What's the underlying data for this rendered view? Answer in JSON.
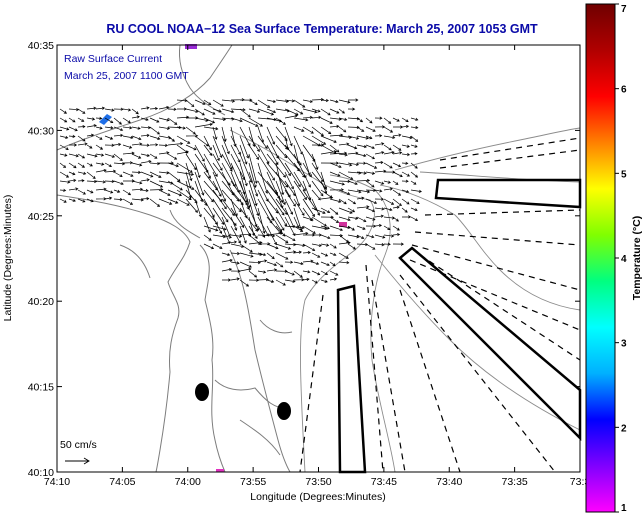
{
  "title": "RU COOL  NOAA−12  Sea Surface Temperature:  March 25, 2007 1053 GMT",
  "annotation": {
    "line1": "Raw Surface Current",
    "line2": "March 25, 2007 1100 GMT"
  },
  "scale_label": "50 cm/s",
  "axes": {
    "xlabel": "Longitude (Degrees:Minutes)",
    "ylabel": "Latitude (Degrees:Minutes)",
    "xticks": [
      "74:10",
      "74:05",
      "74:00",
      "73:55",
      "73:50",
      "73:45",
      "73:40",
      "73:35",
      "73:3"
    ],
    "yticks": [
      "40:10",
      "40:15",
      "40:20",
      "40:25",
      "40:30",
      "40:35"
    ]
  },
  "colorbar": {
    "label": "Temperature (°C)",
    "ticks": [
      "1",
      "2",
      "3",
      "4",
      "5",
      "6",
      "7"
    ],
    "colors": [
      "#ff00ff",
      "#8000ff",
      "#0000ff",
      "#00b0ff",
      "#00ffff",
      "#00ff80",
      "#80ff00",
      "#ffff00",
      "#ff8000",
      "#ff0000",
      "#b00000",
      "#700000"
    ]
  },
  "chart_data": {
    "type": "map",
    "title": "RU COOL  NOAA−12  Sea Surface Temperature:  March 25, 2007 1053 GMT",
    "xlabel": "Longitude (Degrees:Minutes)",
    "ylabel": "Latitude (Degrees:Minutes)",
    "xlim": [
      -74.1667,
      -73.5
    ],
    "ylim": [
      40.1667,
      40.5833
    ],
    "colorbar_range": [
      1,
      7
    ],
    "legend": "Raw Surface Current, March 25, 2007 1100 GMT",
    "grid": false
  }
}
